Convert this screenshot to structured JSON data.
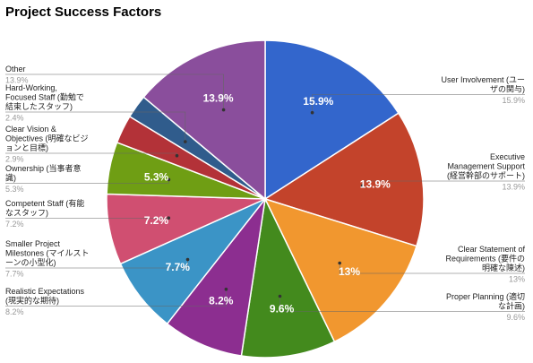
{
  "chart_data": {
    "type": "pie",
    "title": "Project Success Factors",
    "slices": [
      {
        "name": "User Involvement (ユーザの関与)",
        "value": 15.9,
        "label": "15.9%",
        "legend_pct": "15.9%",
        "color": "#3366cc"
      },
      {
        "name": "Executive Management Support (経営幹部のサポート)",
        "value": 13.9,
        "label": "13.9%",
        "legend_pct": "13.9%",
        "color": "#c3432b"
      },
      {
        "name": "Clear Statement of Requirements (要件の明確な陳述)",
        "value": 13.0,
        "label": "13%",
        "legend_pct": "13%",
        "color": "#f1972f"
      },
      {
        "name": "Proper Planning (適切な計画)",
        "value": 9.6,
        "label": "9.6%",
        "legend_pct": "9.6%",
        "color": "#438a1d"
      },
      {
        "name": "Realistic Expectations (現実的な期待)",
        "value": 8.2,
        "label": "8.2%",
        "legend_pct": "8.2%",
        "color": "#8c2e90"
      },
      {
        "name": "Smaller Project Milestones (マイルストーンの小型化)",
        "value": 7.7,
        "label": "7.7%",
        "legend_pct": "7.7%",
        "color": "#3b94c6"
      },
      {
        "name": "Competent Staff (有能なスタッフ)",
        "value": 7.2,
        "label": "7.2%",
        "legend_pct": "7.2%",
        "color": "#d04f71"
      },
      {
        "name": "Ownership (当事者意識)",
        "value": 5.3,
        "label": "5.3%",
        "legend_pct": "5.3%",
        "color": "#6f9e14"
      },
      {
        "name": "Clear Vision & Objectives (明確なビジョンと目標)",
        "value": 2.9,
        "label": "",
        "legend_pct": "2.9%",
        "color": "#b33238"
      },
      {
        "name": "Hard-Working, Focused Staff (勤勉で結束したスタッフ)",
        "value": 2.4,
        "label": "",
        "legend_pct": "2.4%",
        "color": "#305c8c"
      },
      {
        "name": "Other",
        "value": 13.9,
        "label": "13.9%",
        "legend_pct": "13.9%",
        "color": "#8a4e9c"
      }
    ],
    "legend": [
      {
        "side": "right",
        "lines": [
          "User Involvement (ユー",
          "ザの関与)"
        ],
        "pct": "15.9%"
      },
      {
        "side": "right",
        "lines": [
          "Executive",
          "Management Support",
          "(経営幹部のサポート)"
        ],
        "pct": "13.9%"
      },
      {
        "side": "right",
        "lines": [
          "Clear Statement of",
          "Requirements (要件の",
          "明確な陳述)"
        ],
        "pct": "13%"
      },
      {
        "side": "right",
        "lines": [
          "Proper Planning (適切",
          "な計画)"
        ],
        "pct": "9.6%"
      },
      {
        "side": "left",
        "lines": [
          "Realistic Expectations",
          "(現実的な期待)"
        ],
        "pct": "8.2%"
      },
      {
        "side": "left",
        "lines": [
          "Smaller Project",
          "Milestones (マイルスト",
          "ーンの小型化)"
        ],
        "pct": "7.7%"
      },
      {
        "side": "left",
        "lines": [
          "Competent Staff (有能",
          "なスタッフ)"
        ],
        "pct": "7.2%"
      },
      {
        "side": "left",
        "lines": [
          "Ownership (当事者意",
          "識)"
        ],
        "pct": "5.3%"
      },
      {
        "side": "left",
        "lines": [
          "Clear Vision &",
          "Objectives (明確なビジ",
          "ョンと目標)"
        ],
        "pct": "2.9%"
      },
      {
        "side": "left",
        "lines": [
          "Hard-Working,",
          "Focused Staff (勤勉で",
          "結束したスタッフ)"
        ],
        "pct": "2.4%"
      },
      {
        "side": "left",
        "lines": [
          "Other"
        ],
        "pct": "13.9%"
      }
    ]
  }
}
